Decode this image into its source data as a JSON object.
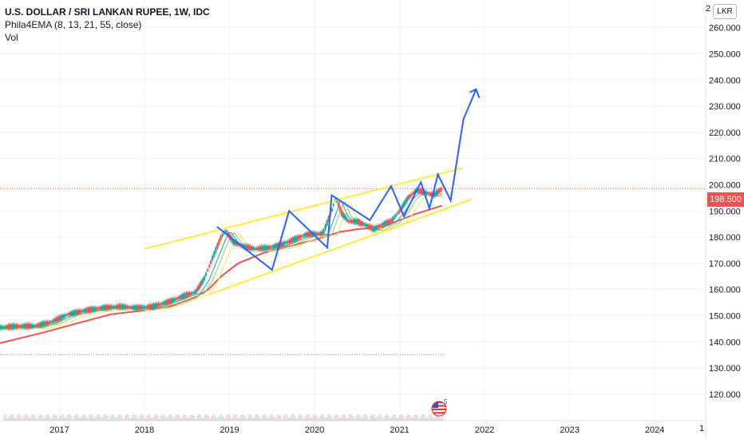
{
  "header": {
    "title": "U.S. DOLLAR / SRI LANKAN RUPEE, 1W, IDC",
    "indicator": "Phila4EMA (8, 13, 21, 55, close)",
    "volume_label": "Vol"
  },
  "price_axis": {
    "currency_button": "LKR",
    "top_partial_label": "2",
    "current_price": "198.500",
    "labels": [
      "260.000",
      "250.000",
      "240.000",
      "230.000",
      "220.000",
      "210.000",
      "200.000",
      "190.000",
      "180.000",
      "170.000",
      "160.000",
      "150.000",
      "140.000",
      "130.000",
      "120.000"
    ]
  },
  "time_axis": {
    "labels": [
      "2017",
      "2018",
      "2019",
      "2020",
      "2021",
      "2022",
      "2023",
      "2024"
    ],
    "edge_partial_label": "1"
  },
  "flag_badge": "5",
  "colors": {
    "price_line": "#ef5350",
    "channel": "#ffeb3b",
    "projection": "#2962ff",
    "ema55": "#ef5350",
    "ema21": "#f5e66a",
    "ema13": "#9ccc65",
    "ema8": "#26a69a",
    "candle_up": "#26a69a",
    "candle_down": "#ef5350"
  },
  "chart_data": {
    "type": "line",
    "y_unit": "LKR per USD",
    "ylim": [
      116,
      266
    ],
    "xlim": [
      2016.3,
      2024.6
    ],
    "series": [
      {
        "x": [
          2016.3,
          2016.5,
          2016.7,
          2016.9,
          2017.1,
          2017.3,
          2017.5,
          2017.7,
          2017.9,
          2018.1,
          2018.3,
          2018.5,
          2018.6,
          2018.7,
          2018.8,
          2018.9,
          2018.95,
          2019.05,
          2019.15,
          2019.3,
          2019.45,
          2019.6,
          2019.75,
          2019.9,
          2020.1,
          2020.2,
          2020.25,
          2020.32,
          2020.4,
          2020.5,
          2020.6,
          2020.7,
          2020.8,
          2020.9,
          2021.0,
          2021.1,
          2021.2,
          2021.3,
          2021.4,
          2021.5
        ],
        "y": [
          145.5,
          146,
          146,
          147.5,
          150.5,
          152,
          153,
          153.5,
          153,
          153.5,
          155.5,
          158,
          159,
          164,
          172,
          180,
          182.5,
          178,
          176.5,
          175.5,
          176,
          177,
          179,
          181,
          181.5,
          190,
          195,
          189,
          186,
          186,
          184.5,
          183,
          185,
          186,
          190,
          195,
          198,
          197,
          196,
          198.5
        ]
      },
      {
        "name": "EMA55",
        "x": [
          2016.3,
          2016.8,
          2017.2,
          2017.6,
          2018.0,
          2018.3,
          2018.6,
          2018.75,
          2018.9,
          2019.1,
          2019.4,
          2019.7,
          2020.0,
          2020.3,
          2020.5,
          2020.8,
          2021.0,
          2021.2,
          2021.5
        ],
        "y": [
          139.5,
          143.5,
          147,
          150.5,
          152,
          153.5,
          157,
          160,
          165,
          170,
          174,
          176.5,
          179,
          182,
          183,
          184,
          186.5,
          189,
          192
        ]
      }
    ],
    "channel": {
      "upper": {
        "x": [
          2018.0,
          2021.75
        ],
        "y": [
          175.5,
          206.5
        ]
      },
      "lower": {
        "x": [
          2018.75,
          2021.85
        ],
        "y": [
          158,
          194.5
        ]
      }
    },
    "projection": {
      "x": [
        2018.85,
        2019.5,
        2019.7,
        2020.15,
        2020.2,
        2020.65,
        2020.9,
        2021.05,
        2021.25,
        2021.35,
        2021.45,
        2021.6,
        2021.75,
        2021.9
      ],
      "y": [
        184,
        167.5,
        190,
        176,
        196,
        186.5,
        199.5,
        188,
        201,
        191,
        204,
        194,
        225,
        236.5
      ]
    },
    "reference_lines": {
      "current_price": 198.5,
      "low_dotted": 135
    }
  }
}
